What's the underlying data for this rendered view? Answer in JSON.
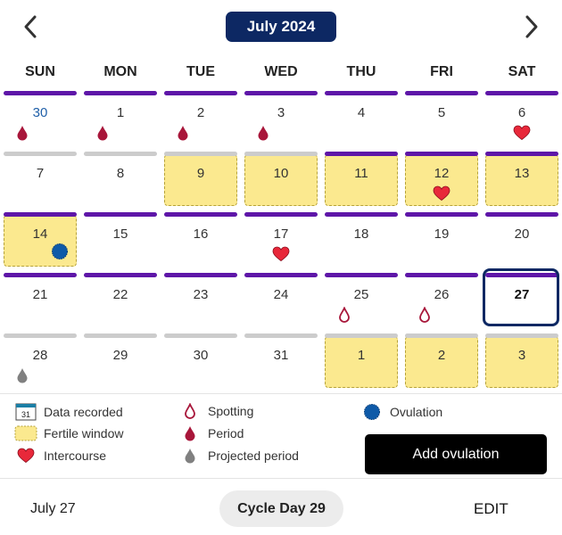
{
  "header": {
    "month_label": "July 2024"
  },
  "weekdays": [
    "SUN",
    "MON",
    "TUE",
    "WED",
    "THU",
    "FRI",
    "SAT"
  ],
  "weeks": [
    [
      {
        "day": "30",
        "recorded": true,
        "marker": "period",
        "other_month": true
      },
      {
        "day": "1",
        "recorded": true,
        "marker": "period"
      },
      {
        "day": "2",
        "recorded": true,
        "marker": "period"
      },
      {
        "day": "3",
        "recorded": true,
        "marker": "period"
      },
      {
        "day": "4",
        "recorded": true
      },
      {
        "day": "5",
        "recorded": true
      },
      {
        "day": "6",
        "recorded": true,
        "marker": "intercourse"
      }
    ],
    [
      {
        "day": "7",
        "recorded": false
      },
      {
        "day": "8",
        "recorded": false
      },
      {
        "day": "9",
        "recorded": false,
        "fertile": true
      },
      {
        "day": "10",
        "recorded": false,
        "fertile": true
      },
      {
        "day": "11",
        "recorded": true,
        "fertile": true
      },
      {
        "day": "12",
        "recorded": true,
        "fertile": true,
        "marker": "intercourse"
      },
      {
        "day": "13",
        "recorded": true,
        "fertile": true
      }
    ],
    [
      {
        "day": "14",
        "recorded": true,
        "fertile": true,
        "marker": "ovulation"
      },
      {
        "day": "15",
        "recorded": true
      },
      {
        "day": "16",
        "recorded": true
      },
      {
        "day": "17",
        "recorded": true,
        "marker": "intercourse"
      },
      {
        "day": "18",
        "recorded": true
      },
      {
        "day": "19",
        "recorded": true
      },
      {
        "day": "20",
        "recorded": true
      }
    ],
    [
      {
        "day": "21",
        "recorded": true
      },
      {
        "day": "22",
        "recorded": true
      },
      {
        "day": "23",
        "recorded": true
      },
      {
        "day": "24",
        "recorded": true
      },
      {
        "day": "25",
        "recorded": true,
        "marker": "spotting"
      },
      {
        "day": "26",
        "recorded": true,
        "marker": "spotting"
      },
      {
        "day": "27",
        "recorded": true,
        "today": true
      }
    ],
    [
      {
        "day": "28",
        "recorded": false,
        "marker": "projected"
      },
      {
        "day": "29",
        "recorded": false
      },
      {
        "day": "30",
        "recorded": false
      },
      {
        "day": "31",
        "recorded": false
      },
      {
        "day": "1",
        "recorded": false,
        "fertile": true,
        "other_month": true
      },
      {
        "day": "2",
        "recorded": false,
        "fertile": true,
        "other_month": true
      },
      {
        "day": "3",
        "recorded": false,
        "fertile": true,
        "other_month": true
      }
    ]
  ],
  "legend": {
    "calendar_icon_text": "31",
    "data_recorded": "Data recorded",
    "fertile_window": "Fertile window",
    "intercourse": "Intercourse",
    "spotting": "Spotting",
    "period": "Period",
    "projected_period": "Projected period",
    "ovulation": "Ovulation"
  },
  "add_ovulation_label": "Add ovulation",
  "footer": {
    "date": "July 27",
    "cycle_day": "Cycle Day 29",
    "edit": "EDIT"
  },
  "colors": {
    "accent_navy": "#0d2863",
    "recorded_bar": "#5e16a8",
    "fertile": "#fbe98f",
    "period": "#a8163a",
    "intercourse": "#e8283a",
    "ovulation": "#0e5aa8",
    "projected": "#808080"
  }
}
